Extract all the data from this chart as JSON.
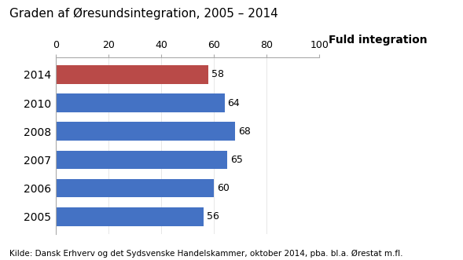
{
  "title": "Graden af Øresundsintegration, 2005 – 2014",
  "categories": [
    "2014",
    "2010",
    "2008",
    "2007",
    "2006",
    "2005"
  ],
  "values": [
    58,
    64,
    68,
    65,
    60,
    56
  ],
  "bar_colors": [
    "#b94a48",
    "#4472c4",
    "#4472c4",
    "#4472c4",
    "#4472c4",
    "#4472c4"
  ],
  "xlim": [
    0,
    100
  ],
  "xticks": [
    0,
    20,
    40,
    60,
    80,
    100
  ],
  "annotation_label": "Fuld integration",
  "footnote": "Kilde: Dansk Erhverv og det Sydsvenske Handelskammer, oktober 2014, pba. bl.a. Ørestat m.fl.",
  "bar_label_fontsize": 9,
  "title_fontsize": 11,
  "footnote_fontsize": 7.5,
  "annotation_fontsize": 10,
  "ytick_fontsize": 10,
  "xtick_fontsize": 9,
  "background_color": "#ffffff",
  "bar_height": 0.65,
  "spine_color": "#aaaaaa"
}
